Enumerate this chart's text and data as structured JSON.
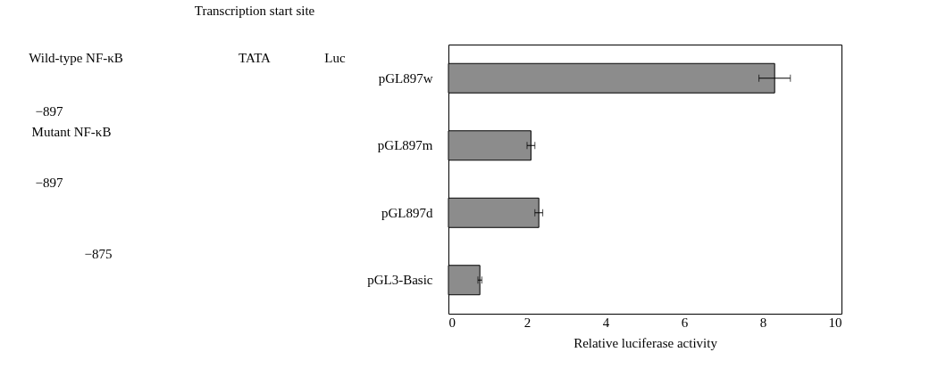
{
  "chart_data": {
    "type": "bar",
    "orientation": "horizontal",
    "categories": [
      "pGL897w",
      "pGL897m",
      "pGL897d",
      "pGL3-Basic"
    ],
    "values": [
      8.3,
      2.1,
      2.3,
      0.8
    ],
    "errors": [
      0.4,
      0.1,
      0.1,
      0.05
    ],
    "color": "#8c8c8c",
    "xlim": [
      0,
      10
    ],
    "xticks": [
      0,
      2,
      4,
      6,
      8,
      10
    ],
    "xlabel": "Relative luciferase activity",
    "grid": false,
    "annotations": [
      "Transcription start site",
      "Wild-type NF-κB",
      "TATA",
      "Luc",
      "−897",
      "Mutant NF-κB",
      "−897",
      "−875"
    ]
  }
}
